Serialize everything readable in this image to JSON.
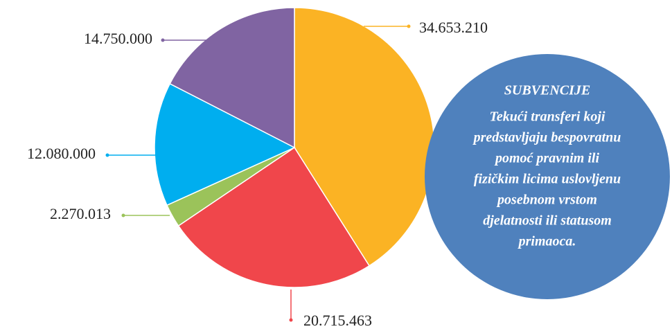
{
  "chart_data": {
    "type": "pie",
    "values": [
      34653210,
      20715463,
      2270013,
      12080000,
      14750000
    ],
    "value_labels": [
      "34.653.210",
      "20.715.463",
      "2.270.013",
      "12.080.000",
      "14.750.000"
    ],
    "colors": [
      "#fbb324",
      "#f0464b",
      "#9bc35a",
      "#00aeef",
      "#8064a2"
    ],
    "annotation": {
      "title": "SUBVENCIJE",
      "lines": [
        "Tekući transferi koji",
        "predstavljaju bespovratnu",
        "pomoć pravnim ili",
        "fizičkim licima uslovljenu",
        "posebnom vrstom",
        "djelatnosti ili statusom",
        "primaoca."
      ],
      "color": "#4f81bd"
    }
  }
}
